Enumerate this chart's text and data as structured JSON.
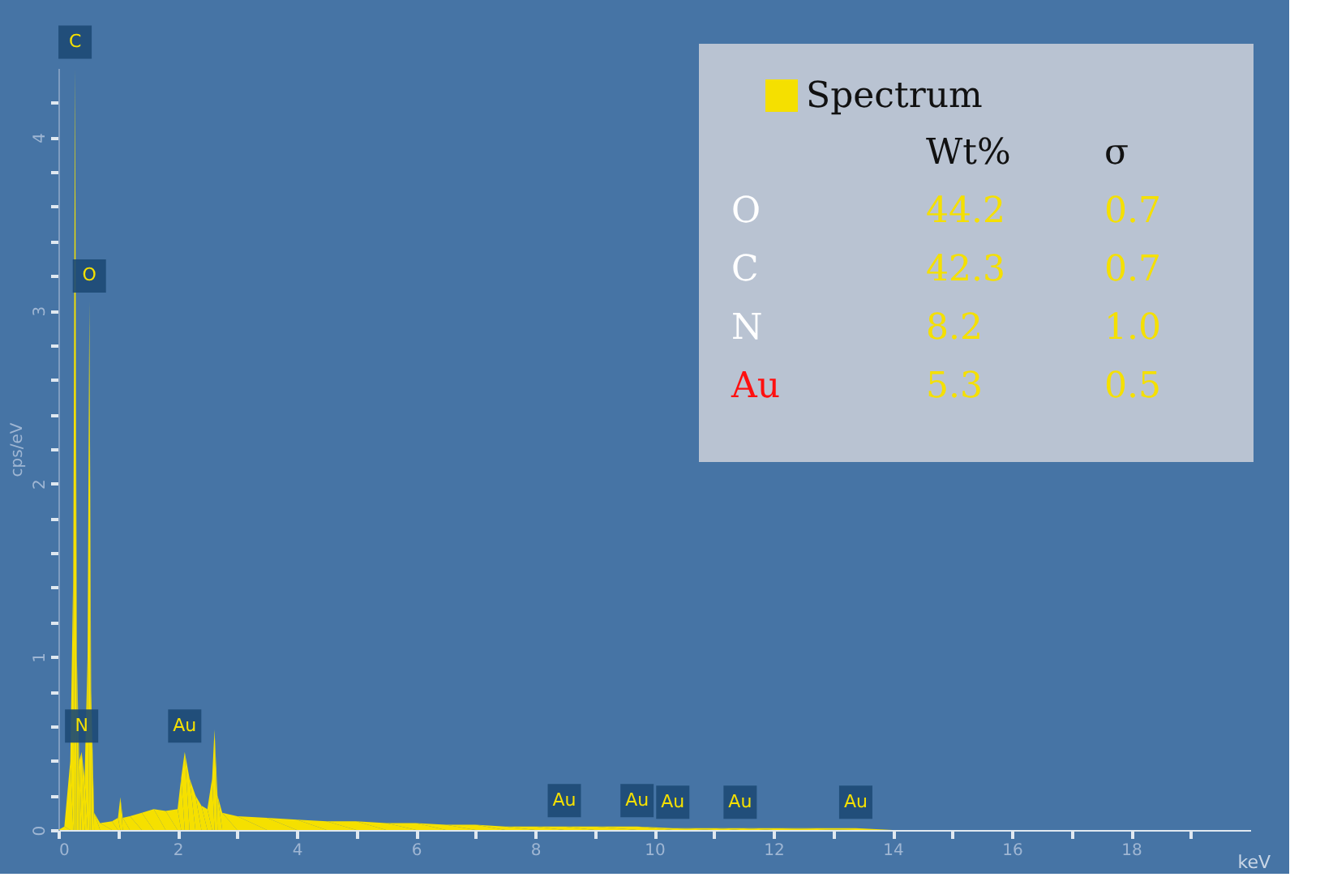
{
  "chart_data": {
    "type": "area",
    "xlabel": "keV",
    "ylabel": "cps/eV",
    "xlim": [
      0,
      20
    ],
    "ylim": [
      0,
      4.4
    ],
    "xticks": [
      0,
      2,
      4,
      6,
      8,
      10,
      12,
      14,
      16,
      18,
      {
        "value": 1,
        "label": null
      },
      {
        "value": 3,
        "label": null
      },
      {
        "value": 5,
        "label": null
      },
      {
        "value": 7,
        "label": null
      },
      {
        "value": 9,
        "label": null
      },
      {
        "value": 11,
        "label": null
      },
      {
        "value": 13,
        "label": null
      },
      {
        "value": 15,
        "label": null
      },
      {
        "value": 17,
        "label": null
      },
      {
        "value": 19,
        "label": null
      }
    ],
    "yticks": [
      0,
      1,
      2,
      3,
      4,
      {
        "value": 0.2,
        "label": null
      },
      {
        "value": 0.4,
        "label": null
      },
      {
        "value": 0.6,
        "label": null
      },
      {
        "value": 0.8,
        "label": null
      },
      {
        "value": 1.2,
        "label": null
      },
      {
        "value": 1.4,
        "label": null
      },
      {
        "value": 1.6,
        "label": null
      },
      {
        "value": 1.8,
        "label": null
      },
      {
        "value": 2.2,
        "label": null
      },
      {
        "value": 2.4,
        "label": null
      },
      {
        "value": 2.6,
        "label": null
      },
      {
        "value": 2.8,
        "label": null
      },
      {
        "value": 3.2,
        "label": null
      },
      {
        "value": 3.4,
        "label": null
      },
      {
        "value": 3.6,
        "label": null
      },
      {
        "value": 3.8,
        "label": null
      },
      {
        "value": 4.2,
        "label": null
      }
    ],
    "grid": false,
    "legend": "top right",
    "series": [
      {
        "name": "Spectrum",
        "color": "#f5e000",
        "x": [
          0,
          0.1,
          0.2,
          0.25,
          0.28,
          0.31,
          0.35,
          0.39,
          0.44,
          0.49,
          0.52,
          0.55,
          0.6,
          0.7,
          0.9,
          1.0,
          1.04,
          1.08,
          1.2,
          1.4,
          1.6,
          1.8,
          2.0,
          2.06,
          2.12,
          2.2,
          2.3,
          2.4,
          2.5,
          2.58,
          2.62,
          2.67,
          2.75,
          3.0,
          3.5,
          4.0,
          4.5,
          5.0,
          5.5,
          6.0,
          6.5,
          7.0,
          7.5,
          8.0,
          8.49,
          9.0,
          9.71,
          10.31,
          11.0,
          11.44,
          12.0,
          13.38,
          14.0,
          15.0
        ],
        "values": [
          0,
          0.02,
          0.4,
          1.5,
          4.4,
          1.0,
          0.4,
          0.45,
          0.3,
          1.0,
          3.05,
          0.8,
          0.1,
          0.04,
          0.05,
          0.07,
          0.19,
          0.07,
          0.08,
          0.1,
          0.12,
          0.11,
          0.12,
          0.3,
          0.45,
          0.3,
          0.2,
          0.14,
          0.12,
          0.3,
          0.58,
          0.2,
          0.1,
          0.08,
          0.07,
          0.06,
          0.05,
          0.05,
          0.04,
          0.04,
          0.03,
          0.03,
          0.02,
          0.02,
          0.02,
          0.02,
          0.02,
          0.01,
          0.01,
          0.01,
          0.01,
          0.01,
          0,
          0
        ]
      }
    ],
    "annotations": [
      "Wt%",
      "σ",
      "O",
      "44.2",
      "0.7",
      "C",
      "42.3",
      "0.7",
      "N",
      "8.2",
      "1.0",
      "Au",
      "5.3",
      "0.5",
      {
        "text": "C",
        "x": 0.28,
        "y": 4.4
      },
      {
        "text": "O",
        "x": 0.52,
        "y": 3.05
      },
      {
        "text": "N",
        "x": 0.39,
        "y": 0.45
      },
      {
        "text": "Au",
        "x": 2.12,
        "y": 0.45
      },
      {
        "text": "Au",
        "x": 8.49,
        "y": 0.02
      },
      {
        "text": "Au",
        "x": 9.71,
        "y": 0.02
      },
      {
        "text": "Au",
        "x": 10.31,
        "y": 0.01
      },
      {
        "text": "Au",
        "x": 11.44,
        "y": 0.01
      },
      {
        "text": "Au",
        "x": 13.38,
        "y": 0.01
      }
    ]
  }
}
